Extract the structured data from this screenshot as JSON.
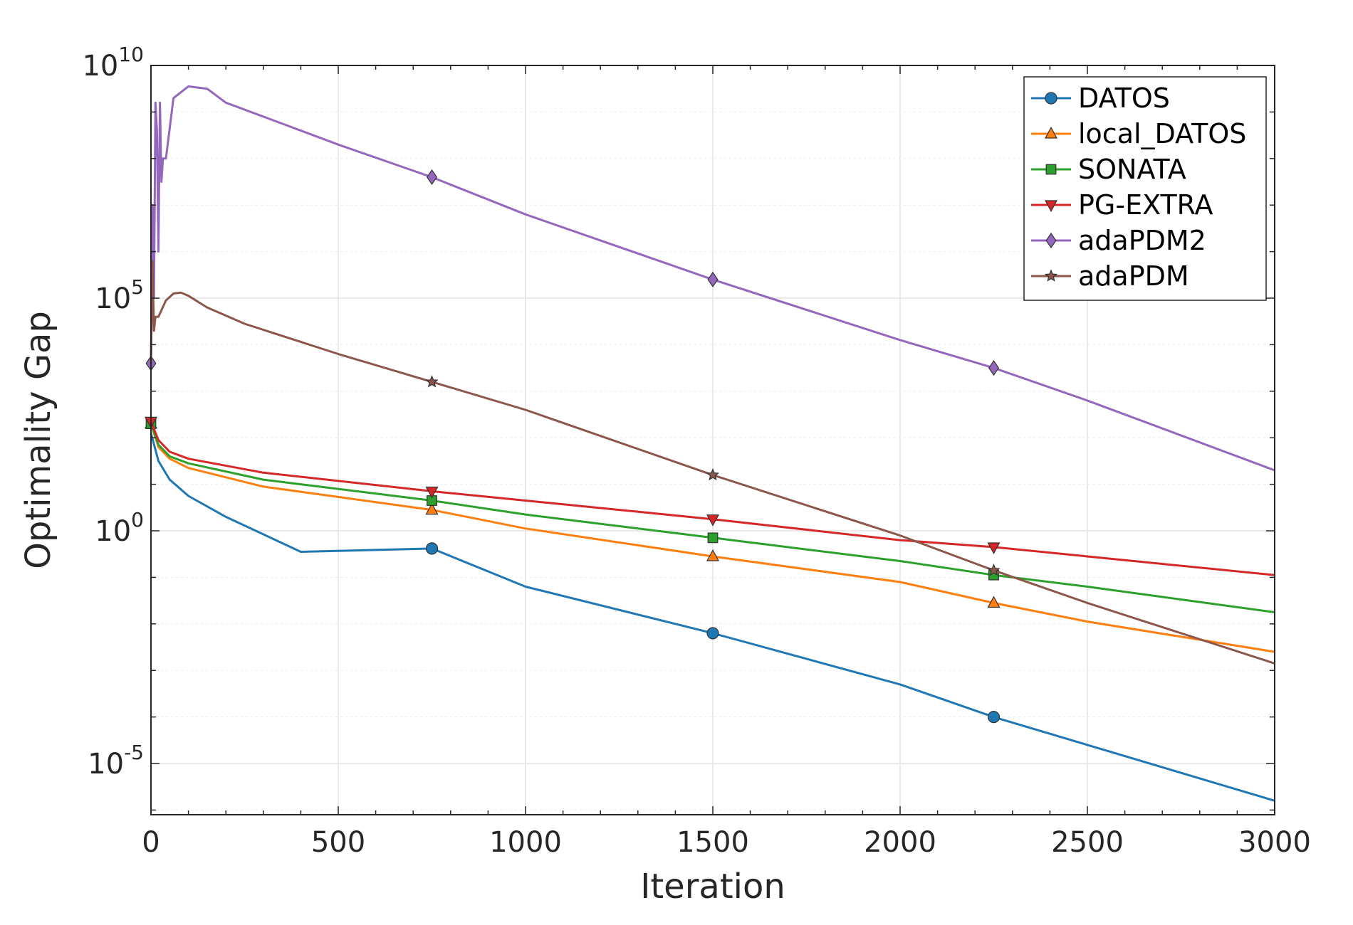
{
  "chart_data": {
    "type": "line",
    "title": "",
    "xlabel": "Iteration",
    "ylabel": "Optimality Gap",
    "xlim": [
      0,
      3000
    ],
    "ylim_log10": [
      -6.1,
      10
    ],
    "yscale": "log",
    "grid": true,
    "legend_position": "top-right",
    "x_ticks": [
      "0",
      "500",
      "1000",
      "1500",
      "2000",
      "2500",
      "3000"
    ],
    "x_tick_values": [
      0,
      500,
      1000,
      1500,
      2000,
      2500,
      3000
    ],
    "y_ticks": [
      {
        "base": "10",
        "exp": "-5",
        "value": -5
      },
      {
        "base": "10",
        "exp": "0",
        "value": 0
      },
      {
        "base": "10",
        "exp": "5",
        "value": 5
      },
      {
        "base": "10",
        "exp": "10",
        "value": 10
      }
    ],
    "series": [
      {
        "name": "DATOS",
        "color": "#1f77b4",
        "marker": "circle",
        "marker_x": [
          750,
          1500,
          2250
        ],
        "points": [
          [
            0,
            2.1
          ],
          [
            20,
            1.5
          ],
          [
            50,
            1.1
          ],
          [
            100,
            0.75
          ],
          [
            200,
            0.3
          ],
          [
            400,
            -0.45
          ],
          [
            750,
            -0.38
          ],
          [
            1000,
            -1.2
          ],
          [
            1500,
            -2.2
          ],
          [
            2000,
            -3.3
          ],
          [
            2250,
            -4.0
          ],
          [
            2500,
            -4.6
          ],
          [
            3000,
            -5.8
          ]
        ]
      },
      {
        "name": "local_DATOS",
        "color": "#ff7f0e",
        "marker": "triangle-up",
        "marker_x": [
          0,
          750,
          1500,
          2250
        ],
        "points": [
          [
            0,
            2.3
          ],
          [
            20,
            1.8
          ],
          [
            50,
            1.55
          ],
          [
            100,
            1.35
          ],
          [
            300,
            0.95
          ],
          [
            750,
            0.45
          ],
          [
            1000,
            0.05
          ],
          [
            1500,
            -0.55
          ],
          [
            2000,
            -1.1
          ],
          [
            2250,
            -1.55
          ],
          [
            2500,
            -1.95
          ],
          [
            3000,
            -2.6
          ]
        ]
      },
      {
        "name": "SONATA",
        "color": "#2ca02c",
        "marker": "square",
        "marker_x": [
          0,
          750,
          1500,
          2250
        ],
        "points": [
          [
            0,
            2.3
          ],
          [
            20,
            1.85
          ],
          [
            50,
            1.6
          ],
          [
            100,
            1.45
          ],
          [
            300,
            1.1
          ],
          [
            750,
            0.65
          ],
          [
            1000,
            0.35
          ],
          [
            1500,
            -0.15
          ],
          [
            2000,
            -0.65
          ],
          [
            2250,
            -0.95
          ],
          [
            2500,
            -1.2
          ],
          [
            3000,
            -1.75
          ]
        ]
      },
      {
        "name": "PG-EXTRA",
        "color": "#d62728",
        "marker": "triangle-down",
        "marker_x": [
          0,
          750,
          1500,
          2250
        ],
        "points": [
          [
            0,
            2.35
          ],
          [
            20,
            1.95
          ],
          [
            50,
            1.7
          ],
          [
            100,
            1.55
          ],
          [
            300,
            1.25
          ],
          [
            750,
            0.85
          ],
          [
            1000,
            0.65
          ],
          [
            1500,
            0.25
          ],
          [
            2000,
            -0.2
          ],
          [
            2250,
            -0.35
          ],
          [
            2500,
            -0.55
          ],
          [
            3000,
            -0.95
          ]
        ]
      },
      {
        "name": "adaPDM2",
        "color": "#9467bd",
        "marker": "diamond",
        "marker_x": [
          0,
          750,
          1500,
          2250
        ],
        "points": [
          [
            0,
            3.6
          ],
          [
            4,
            7.0
          ],
          [
            8,
            5.0
          ],
          [
            12,
            9.2
          ],
          [
            16,
            8.6
          ],
          [
            20,
            6.0
          ],
          [
            24,
            9.2
          ],
          [
            28,
            7.5
          ],
          [
            32,
            8.0
          ],
          [
            40,
            8.0
          ],
          [
            60,
            9.3
          ],
          [
            100,
            9.55
          ],
          [
            150,
            9.5
          ],
          [
            200,
            9.2
          ],
          [
            300,
            8.9
          ],
          [
            500,
            8.3
          ],
          [
            750,
            7.6
          ],
          [
            1000,
            6.8
          ],
          [
            1500,
            5.4
          ],
          [
            2000,
            4.1
          ],
          [
            2250,
            3.5
          ],
          [
            2500,
            2.8
          ],
          [
            3000,
            1.3
          ]
        ]
      },
      {
        "name": "adaPDM",
        "color": "#8c564b",
        "marker": "star",
        "marker_x": [
          750,
          1500,
          2250
        ],
        "points": [
          [
            0,
            3.6
          ],
          [
            4,
            5.8
          ],
          [
            8,
            4.3
          ],
          [
            12,
            4.6
          ],
          [
            20,
            4.6
          ],
          [
            40,
            4.95
          ],
          [
            60,
            5.1
          ],
          [
            80,
            5.12
          ],
          [
            100,
            5.05
          ],
          [
            150,
            4.8
          ],
          [
            250,
            4.45
          ],
          [
            500,
            3.8
          ],
          [
            750,
            3.2
          ],
          [
            1000,
            2.6
          ],
          [
            1500,
            1.2
          ],
          [
            2000,
            -0.1
          ],
          [
            2250,
            -0.85
          ],
          [
            2500,
            -1.55
          ],
          [
            3000,
            -2.85
          ]
        ]
      }
    ]
  }
}
